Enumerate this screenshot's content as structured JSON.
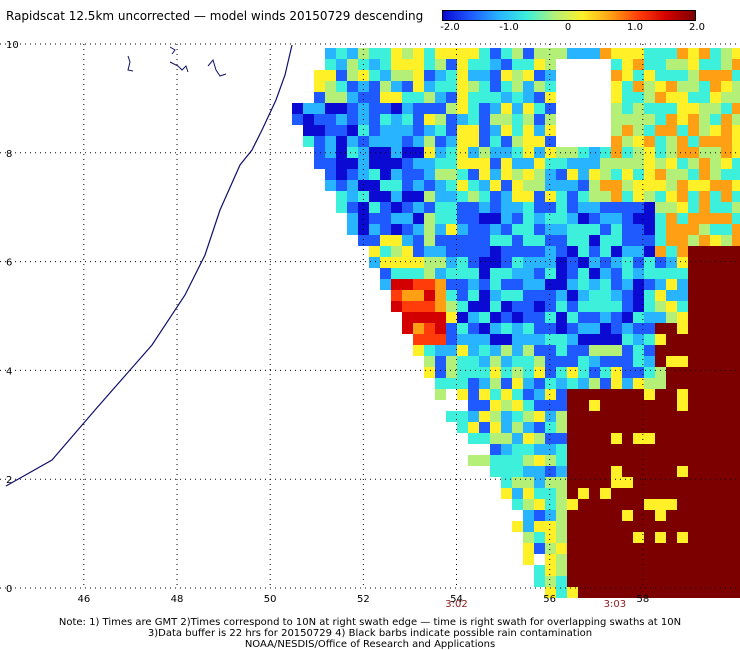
{
  "title": "Rapidscat 12.5km uncorrected — model winds 20150729 descending",
  "colorbar": {
    "labels": [
      "-2.0",
      "-1.0",
      "0",
      "1.0",
      "2.0"
    ],
    "values": [
      -2.0,
      -1.0,
      0,
      1.0,
      2.0
    ],
    "stops": [
      "#0a0ad2",
      "#1e5aff",
      "#28b4ff",
      "#3cf0dc",
      "#b4f078",
      "#fff028",
      "#ffa014",
      "#ff3c0a",
      "#d20000",
      "#7d0000"
    ]
  },
  "axes": {
    "x_ticks": [
      "46",
      "48",
      "50",
      "52",
      "54",
      "56",
      "58"
    ],
    "x_values": [
      46,
      48,
      50,
      52,
      54,
      56,
      58
    ],
    "y_ticks": [
      "0",
      "2",
      "4",
      "6",
      "8",
      "10"
    ],
    "y_values": [
      0,
      2,
      4,
      6,
      8,
      10
    ],
    "lon_range": [
      44.2,
      60.0
    ],
    "lat_range": [
      0,
      10
    ]
  },
  "times": [
    {
      "label": "3:02",
      "lon": 54.0
    },
    {
      "label": "3:03",
      "lon": 57.4
    }
  ],
  "notes": [
    "Note: 1) Times are GMT 2)Times correspond to 10N at right swath edge — time is right swath for overlapping swaths at 10N",
    "3)Data buffer is 22 hrs for 20150729 4) Black barbs indicate possible rain contamination",
    "NOAA/NESDIS/Office of Research and Applications"
  ]
}
